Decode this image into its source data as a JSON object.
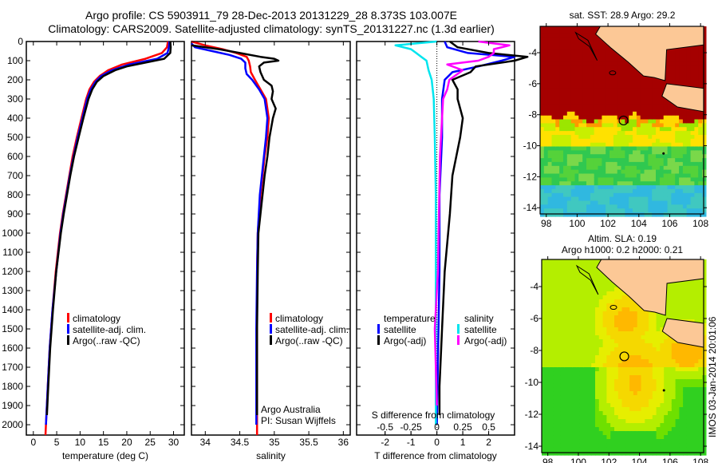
{
  "title": {
    "line1": "Argo profile: CS 5903911_79 28-Dec-2013 20131229_28 8.373S 103.007E",
    "line2": "Climatology: CARS2009. Satellite-adjusted climatology: synTS_20131227.nc (1.3d earlier)"
  },
  "colors": {
    "climatology": "#ff0000",
    "satellite": "#0000ff",
    "argo": "#000000",
    "sal_satellite": "#00e5ee",
    "sal_argo": "#ff00ff"
  },
  "chart_data": [
    {
      "type": "line",
      "id": "temperature",
      "xlabel": "temperature (deg C)",
      "ylabel": "",
      "xlim": [
        -1.5,
        32.3
      ],
      "ylim": [
        2054,
        0
      ],
      "xticks": [
        "0",
        "5",
        "10",
        "15",
        "20",
        "25",
        "30"
      ],
      "xtick_values": [
        0,
        5,
        10,
        15,
        20,
        25,
        30
      ],
      "yticks": [
        "0",
        "100",
        "200",
        "300",
        "400",
        "500",
        "600",
        "700",
        "800",
        "900",
        "1000",
        "1100",
        "1200",
        "1300",
        "1400",
        "1500",
        "1600",
        "1700",
        "1800",
        "1900",
        "2000"
      ],
      "ytick_values": [
        0,
        100,
        200,
        300,
        400,
        500,
        600,
        700,
        800,
        900,
        1000,
        1100,
        1200,
        1300,
        1400,
        1500,
        1600,
        1700,
        1800,
        1900,
        2000
      ],
      "legend": [
        "climatology",
        "satellite-adj. clim.",
        "Argo(..raw -QC)"
      ],
      "series": [
        {
          "name": "climatology",
          "depth": [
            0,
            30,
            60,
            90,
            120,
            150,
            180,
            210,
            250,
            300,
            400,
            500,
            600,
            700,
            800,
            900,
            1000,
            1200,
            1400,
            1600,
            1800,
            2000,
            2054
          ],
          "values": [
            28.8,
            28.6,
            27.5,
            24,
            19,
            16,
            14.2,
            13,
            12,
            11.3,
            10.3,
            9.3,
            8.4,
            7.7,
            7,
            6.3,
            5.7,
            4.8,
            4.1,
            3.5,
            3.1,
            2.7,
            2.6
          ]
        },
        {
          "name": "satellite-adj. clim.",
          "depth": [
            0,
            30,
            60,
            90,
            120,
            150,
            180,
            210,
            250,
            300,
            400,
            500,
            600,
            700,
            800,
            900,
            1000,
            1200,
            1400,
            1600,
            1800,
            2000
          ],
          "values": [
            29.1,
            29,
            28.7,
            26.5,
            20.5,
            16.8,
            14.5,
            13.3,
            12.3,
            11.5,
            10.5,
            9.5,
            8.6,
            7.8,
            7.1,
            6.4,
            5.8,
            4.9,
            4.1,
            3.5,
            3.1,
            2.7
          ]
        },
        {
          "name": "Argo(..raw -QC)",
          "depth": [
            0,
            30,
            60,
            90,
            110,
            130,
            150,
            180,
            210,
            250,
            300,
            400,
            500,
            600,
            700,
            800,
            900,
            1000,
            1200,
            1400,
            1600,
            1800,
            1950
          ],
          "values": [
            29.3,
            29.4,
            29.3,
            28,
            24,
            20,
            17.5,
            15,
            13.6,
            12.6,
            11.8,
            10.7,
            9.7,
            8.7,
            7.9,
            7.2,
            6.5,
            5.9,
            4.9,
            4.2,
            3.6,
            3.2,
            2.9
          ]
        }
      ]
    },
    {
      "type": "line",
      "id": "salinity",
      "xlabel": "salinity",
      "xlim": [
        33.8,
        36.1
      ],
      "ylim": [
        2054,
        0
      ],
      "xticks": [
        "34",
        "34.5",
        "35",
        "35.5",
        "36"
      ],
      "xtick_values": [
        34,
        34.5,
        35,
        35.5,
        36
      ],
      "legend": [
        "climatology",
        "satellite-adj. clim.",
        "Argo(..raw -QC)"
      ],
      "annotation": [
        "Argo Australia",
        "PI: Susan Wijffels"
      ],
      "series": [
        {
          "name": "climatology",
          "depth": [
            0,
            20,
            40,
            60,
            80,
            100,
            130,
            160,
            200,
            250,
            300,
            400,
            500,
            600,
            800,
            1000,
            1200,
            1500,
            2054
          ],
          "values": [
            33.8,
            34.0,
            34.25,
            34.45,
            34.6,
            34.63,
            34.65,
            34.66,
            34.72,
            34.8,
            34.88,
            34.92,
            34.9,
            34.86,
            34.8,
            34.76,
            34.75,
            34.75,
            34.75
          ]
        },
        {
          "name": "satellite-adj. clim.",
          "depth": [
            10,
            30,
            50,
            70,
            90,
            110,
            140,
            170,
            200,
            250,
            300,
            400,
            500,
            600,
            800,
            1000,
            1200,
            1500,
            2000
          ],
          "values": [
            33.8,
            33.85,
            34.1,
            34.35,
            34.52,
            34.58,
            34.58,
            34.6,
            34.68,
            34.78,
            34.86,
            34.9,
            34.88,
            34.85,
            34.79,
            34.76,
            34.75,
            34.74,
            34.74
          ]
        },
        {
          "name": "Argo(..raw -QC)",
          "depth": [
            20,
            40,
            60,
            80,
            90,
            100,
            110,
            130,
            160,
            200,
            230,
            260,
            300,
            350,
            400,
            500,
            600,
            700,
            800,
            900,
            1000,
            1200,
            1500,
            1800,
            1950
          ],
          "values": [
            33.8,
            34.2,
            34.5,
            34.8,
            35.0,
            35.06,
            34.85,
            34.78,
            34.8,
            34.85,
            34.96,
            34.98,
            34.96,
            35.02,
            34.98,
            34.93,
            34.9,
            34.86,
            34.83,
            34.8,
            34.77,
            34.76,
            34.75,
            34.75,
            34.75
          ]
        }
      ]
    },
    {
      "type": "line",
      "id": "difference",
      "xlabel": "T difference from climatology",
      "x2label": "S difference from climatology",
      "xlim": [
        -3.1,
        3.0
      ],
      "ylim": [
        2054,
        0
      ],
      "xticks": [
        "-2",
        "-1",
        "0",
        "1",
        "2"
      ],
      "xtick_values": [
        -2,
        -1,
        0,
        1,
        2
      ],
      "x2ticks": [
        "-0.5",
        "-0.25",
        "0",
        "0.25",
        "0.5"
      ],
      "x2tick_values": [
        -0.5,
        -0.25,
        0,
        0.25,
        0.5
      ],
      "legend_temperature": {
        "title": "temperature",
        "items": [
          "satellite",
          "Argo(-adj)"
        ]
      },
      "legend_salinity": {
        "title": "salinity",
        "items": [
          "satellite",
          "Argo(-adj)"
        ]
      },
      "series": [
        {
          "name": "temperature satellite",
          "depth": [
            0,
            30,
            60,
            80,
            100,
            130,
            160,
            200,
            300,
            500,
            800,
            1200,
            1600,
            2000
          ],
          "values": [
            0.3,
            0.4,
            1.2,
            3.0,
            2.5,
            1.6,
            0.6,
            0.3,
            0.2,
            0.2,
            0.1,
            0.1,
            0.05,
            0.0
          ]
        },
        {
          "name": "temperature Argo(-adj)",
          "depth": [
            0,
            30,
            60,
            80,
            100,
            130,
            160,
            200,
            250,
            300,
            400,
            500,
            700,
            900,
            1200,
            1500,
            1800,
            1950
          ],
          "values": [
            0.5,
            0.8,
            2.0,
            3.5,
            3.0,
            1.5,
            1.3,
            0.6,
            0.8,
            0.8,
            1.0,
            0.9,
            0.6,
            0.5,
            0.3,
            0.2,
            0.1,
            0.1
          ]
        },
        {
          "name": "salinity satellite",
          "depth": [
            0,
            20,
            40,
            60,
            80,
            100,
            150,
            200,
            300,
            500,
            800,
            1200,
            1600,
            2000
          ],
          "values": [
            0.0,
            -0.4,
            -0.25,
            -0.2,
            -0.15,
            -0.1,
            -0.08,
            -0.05,
            -0.03,
            -0.02,
            -0.01,
            -0.01,
            -0.01,
            -0.01
          ]
        },
        {
          "name": "salinity Argo(-adj)",
          "depth": [
            0,
            20,
            40,
            60,
            80,
            100,
            120,
            150,
            200,
            250,
            300,
            400,
            600,
            900,
            1200,
            1500,
            1900
          ],
          "values": [
            0.4,
            0.7,
            0.55,
            0.55,
            0.5,
            0.4,
            0.1,
            0.25,
            0.12,
            0.1,
            0.06,
            0.05,
            0.03,
            0.02,
            0.01,
            -0.02,
            0.0
          ]
        }
      ]
    },
    {
      "type": "heatmap",
      "id": "sst-map",
      "title": "sat. SST: 28.9  Argo: 29.2",
      "xticks": [
        "98",
        "100",
        "102",
        "104",
        "106",
        "108"
      ],
      "xtick_values": [
        98,
        100,
        102,
        104,
        106,
        108
      ],
      "yticks": [
        "-4",
        "-6",
        "-8",
        "-10",
        "-12",
        "-14"
      ],
      "ytick_values": [
        -4,
        -6,
        -8,
        -10,
        -12,
        -14
      ],
      "xlim": [
        97.6,
        108.2
      ],
      "ylim": [
        -14.4,
        -2.3
      ],
      "argo_position": {
        "lon": 103.007,
        "lat": -8.373
      }
    },
    {
      "type": "heatmap",
      "id": "sla-map",
      "title": "Altim. SLA: 0.19",
      "subtitle": "Argo h1000: 0.2 h2000: 0.21",
      "xticks": [
        "98",
        "100",
        "102",
        "104",
        "106",
        "108"
      ],
      "xtick_values": [
        98,
        100,
        102,
        104,
        106,
        108
      ],
      "yticks": [
        "-4",
        "-6",
        "-8",
        "-10",
        "-12",
        "-14"
      ],
      "ytick_values": [
        -4,
        -6,
        -8,
        -10,
        -12,
        -14
      ],
      "xlim": [
        97.6,
        108.2
      ],
      "ylim": [
        -14.4,
        -2.3
      ],
      "argo_position": {
        "lon": 103.007,
        "lat": -8.373
      }
    }
  ],
  "footer": {
    "stamp": "IMOS 03-Jan-2014 20:01:06"
  }
}
